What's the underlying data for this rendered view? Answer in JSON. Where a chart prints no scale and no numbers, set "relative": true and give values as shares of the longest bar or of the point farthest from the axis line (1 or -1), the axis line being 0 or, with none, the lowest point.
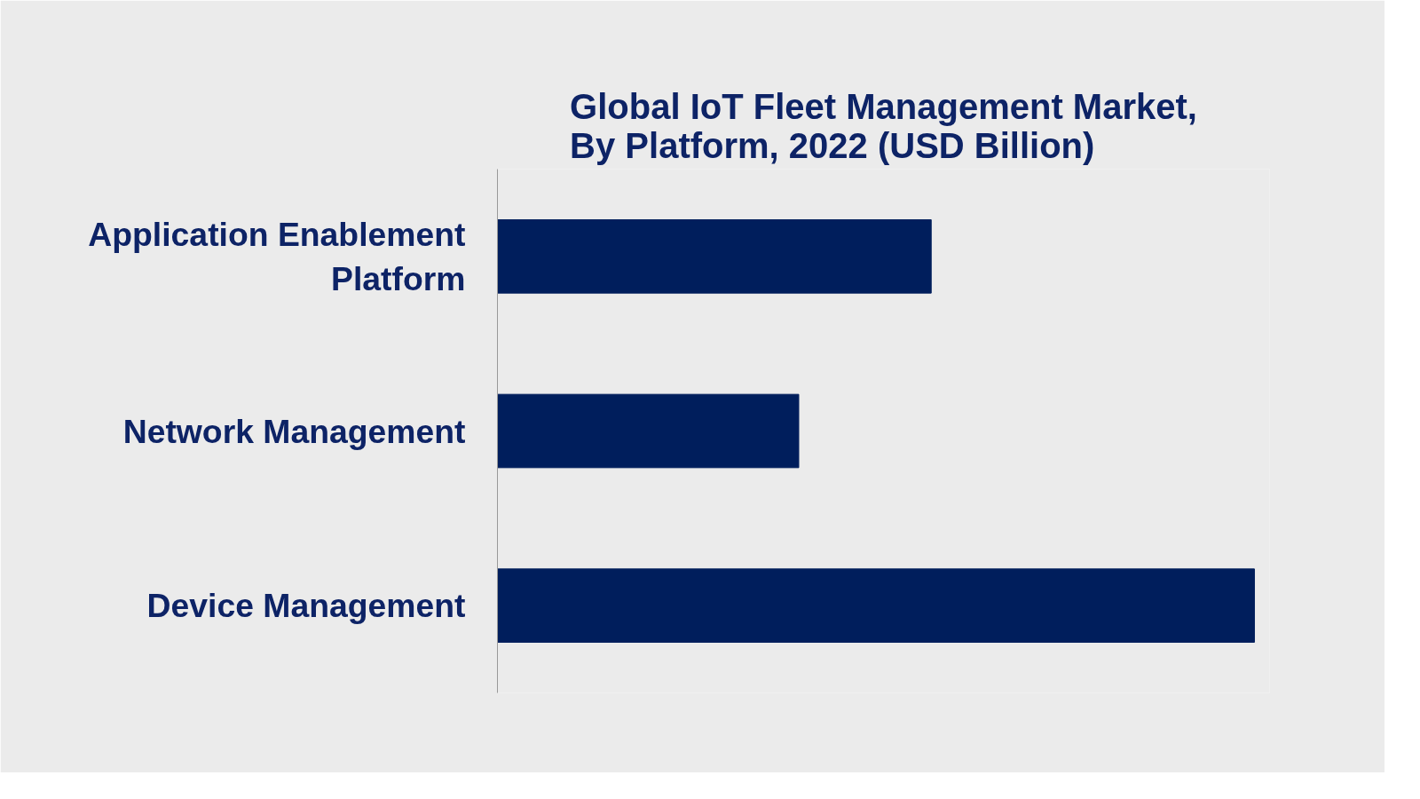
{
  "chart_data": {
    "type": "bar",
    "orientation": "horizontal",
    "relative": true,
    "title": "Global IoT Fleet Management Market, By Platform, 2022 (USD Billion)",
    "categories": [
      "Application Enablement Platform",
      "Network Management",
      "Device Management"
    ],
    "values": [
      0.573,
      0.398,
      1
    ],
    "color": "#001e5c",
    "grid": false
  }
}
